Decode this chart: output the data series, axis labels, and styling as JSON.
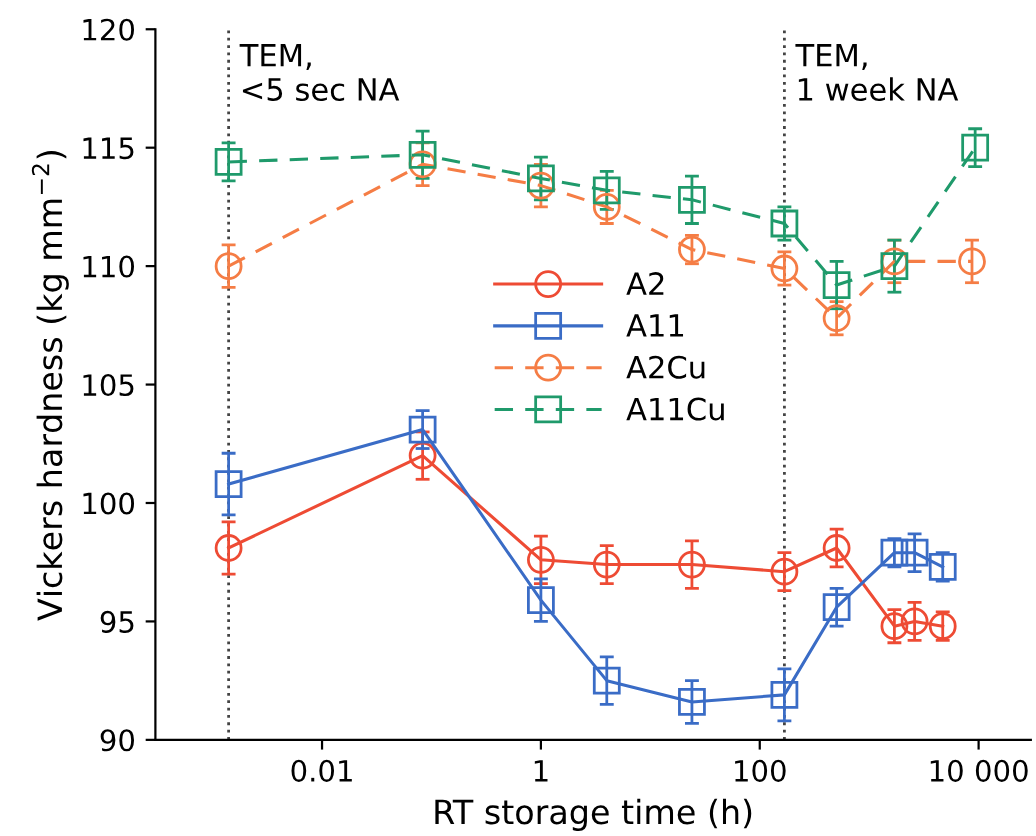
{
  "chart_data": {
    "type": "line",
    "xlabel": "RT storage time (h)",
    "ylabel": "Vickers hardness (kg mm$^{−2}$)",
    "log": "x",
    "xlim": [
      0.0003,
      30000
    ],
    "xticks": [
      0.01,
      1,
      100,
      {
        "value": 10000,
        "label": "10 000"
      }
    ],
    "ylim": [
      90,
      120
    ],
    "yticks": [
      90,
      95,
      100,
      105,
      110,
      115,
      120
    ],
    "grid": false,
    "legend": "center",
    "series": [
      {
        "name": "A2",
        "color": "#ee4b34",
        "marker": "circle",
        "line_style": "solid",
        "x": [
          0.0014,
          0.083,
          1,
          4,
          24,
          168,
          504,
          1700,
          2600,
          4700
        ],
        "values": [
          98.1,
          102.0,
          97.6,
          97.4,
          97.4,
          97.1,
          98.1,
          94.8,
          95.0,
          94.8
        ],
        "errors": [
          1.1,
          1.0,
          1.0,
          0.8,
          1.0,
          0.8,
          0.8,
          0.7,
          0.8,
          0.6
        ]
      },
      {
        "name": "A11",
        "color": "#3a6cc6",
        "marker": "square",
        "line_style": "solid",
        "x": [
          0.0014,
          0.083,
          1,
          4,
          24,
          168,
          504,
          1700,
          2600,
          4700
        ],
        "values": [
          100.8,
          103.1,
          95.9,
          92.5,
          91.6,
          91.9,
          95.6,
          97.9,
          97.9,
          97.3
        ],
        "errors": [
          1.3,
          0.8,
          0.9,
          1.0,
          0.9,
          1.1,
          0.8,
          0.6,
          0.8,
          0.6
        ]
      },
      {
        "name": "A2Cu",
        "color": "#f57d45",
        "marker": "circle",
        "line_style": "dashed",
        "x": [
          0.0014,
          0.083,
          1,
          4,
          24,
          168,
          504,
          1700,
          8700
        ],
        "values": [
          110.0,
          114.3,
          113.4,
          112.5,
          110.7,
          109.9,
          107.8,
          110.2,
          110.2
        ],
        "errors": [
          0.9,
          0.9,
          0.9,
          0.7,
          0.6,
          0.7,
          0.7,
          0.9,
          0.9
        ]
      },
      {
        "name": "A11Cu",
        "color": "#1f9a6b",
        "marker": "square",
        "line_style": "dashed",
        "x": [
          0.0014,
          0.083,
          1,
          4,
          24,
          168,
          504,
          1700,
          9300
        ],
        "values": [
          114.4,
          114.7,
          113.7,
          113.2,
          112.8,
          111.8,
          109.2,
          110.0,
          115.0
        ],
        "errors": [
          0.8,
          1.0,
          0.9,
          0.8,
          1.0,
          0.7,
          1.0,
          1.1,
          0.8
        ]
      }
    ],
    "ref_lines": [
      {
        "axis": "x",
        "value": 0.0014,
        "label": "TEM,\n<5 sec NA",
        "color": "#444444",
        "line_style": "dotted"
      },
      {
        "axis": "x",
        "value": 168,
        "label": "TEM,\n1 week NA",
        "color": "#444444",
        "line_style": "dotted"
      }
    ]
  }
}
